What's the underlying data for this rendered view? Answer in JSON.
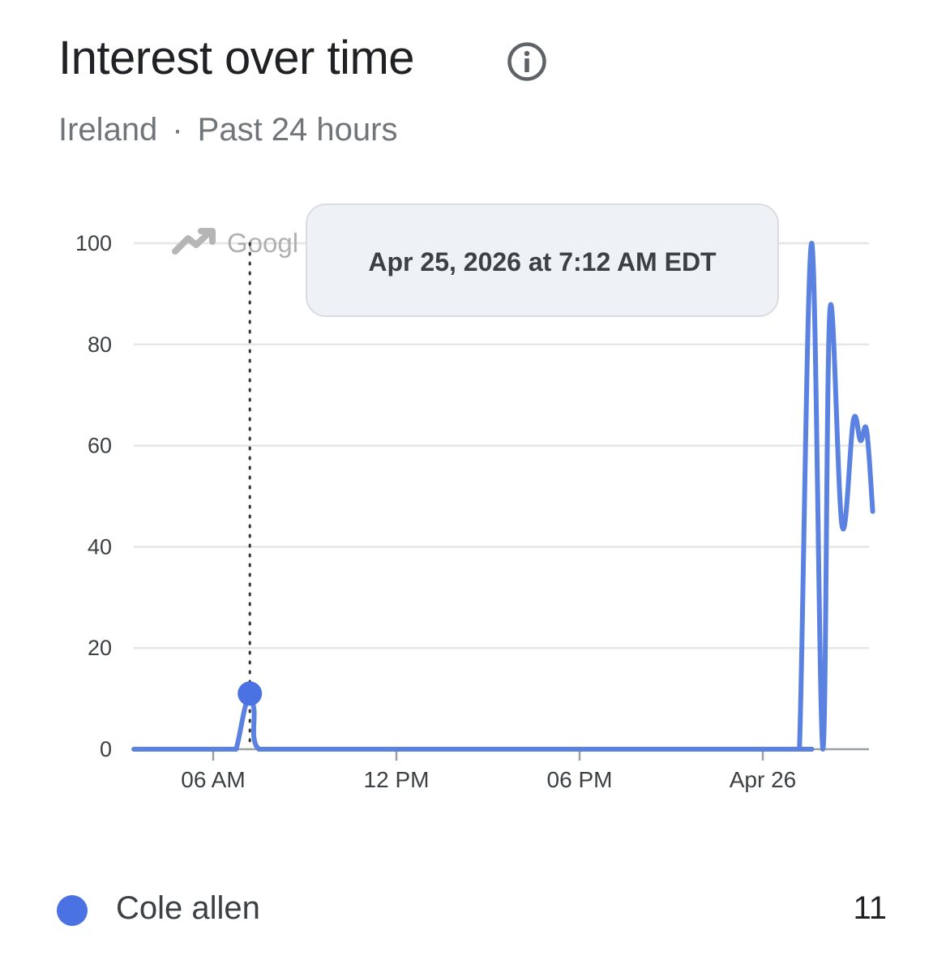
{
  "header": {
    "title": "Interest over time",
    "region": "Ireland",
    "separator": "·",
    "period": "Past 24 hours",
    "info_icon": "info-circle-icon"
  },
  "colors": {
    "series": "#5b82e0",
    "point": "#4a72e2",
    "grid": "#e6e6e6",
    "axis": "#9aa0a6",
    "tick_text": "#3c4043",
    "tooltip_bg": "#eef1f6",
    "tooltip_border": "#dadce0"
  },
  "chart_data": {
    "type": "line",
    "x_tick_labels": [
      "06 AM",
      "12 PM",
      "06 PM",
      "Apr 26"
    ],
    "y_ticks": [
      0,
      20,
      40,
      60,
      80,
      100
    ],
    "ylim": [
      0,
      100
    ],
    "grid": true,
    "watermark": "Googl",
    "watermark_icon": "trending-up-icon",
    "series": [
      {
        "name": "Cole allen",
        "points": [
          [
            "Apr 25 03:24",
            0
          ],
          [
            "Apr 25 05:12",
            0
          ],
          [
            "Apr 25 06:35",
            0
          ],
          [
            "Apr 25 06:45",
            0
          ],
          [
            "Apr 25 07:02",
            8
          ],
          [
            "Apr 25 07:12",
            11
          ],
          [
            "Apr 25 07:20",
            8
          ],
          [
            "Apr 25 07:30",
            0
          ],
          [
            "Apr 25 09:00",
            0
          ],
          [
            "Apr 25 12:00",
            0
          ],
          [
            "Apr 25 18:00",
            0
          ],
          [
            "Apr 26 01:00",
            0
          ],
          [
            "Apr 26 01:12",
            0
          ],
          [
            "Apr 26 01:36",
            100
          ],
          [
            "Apr 26 01:58",
            0
          ],
          [
            "Apr 26 02:12",
            87
          ],
          [
            "Apr 26 02:36",
            44
          ],
          [
            "Apr 26 02:58",
            65
          ],
          [
            "Apr 26 03:12",
            61
          ],
          [
            "Apr 26 03:24",
            63
          ],
          [
            "Apr 26 03:36",
            47
          ]
        ]
      }
    ],
    "highlight": {
      "time": "Apr 25 07:12",
      "value": 11,
      "tooltip": "Apr 25, 2026 at 7:12 AM EDT"
    }
  },
  "legend": {
    "items": [
      {
        "label": "Cole allen",
        "value": "11"
      }
    ]
  }
}
